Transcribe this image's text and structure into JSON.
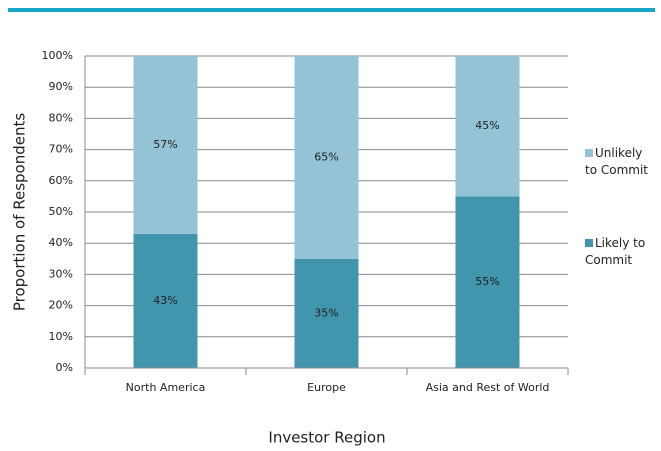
{
  "chart_data": {
    "type": "bar",
    "stacked": true,
    "x_label": "Investor Region",
    "y_label": "Proportion of Respondents",
    "categories": [
      "North America",
      "Europe",
      "Asia and Rest of World"
    ],
    "series": [
      {
        "name": "Likely to Commit",
        "color": "#4196ae",
        "values": [
          43,
          35,
          55
        ],
        "value_labels": [
          "43%",
          "35%",
          "55%"
        ]
      },
      {
        "name": "Unlikely to Commit",
        "color": "#93c3d5",
        "values": [
          57,
          65,
          45
        ],
        "value_labels": [
          "57%",
          "65%",
          "45%"
        ]
      }
    ],
    "ylim": [
      0,
      100
    ],
    "yticks": [
      {
        "value": 0,
        "label": "0%"
      },
      {
        "value": 10,
        "label": "10%"
      },
      {
        "value": 20,
        "label": "20%"
      },
      {
        "value": 30,
        "label": "30%"
      },
      {
        "value": 40,
        "label": "40%"
      },
      {
        "value": 50,
        "label": "50%"
      },
      {
        "value": 60,
        "label": "60%"
      },
      {
        "value": 70,
        "label": "70%"
      },
      {
        "value": 80,
        "label": "80%"
      },
      {
        "value": 90,
        "label": "90%"
      },
      {
        "value": 100,
        "label": "100%"
      }
    ],
    "grid": true,
    "legend": "right"
  }
}
